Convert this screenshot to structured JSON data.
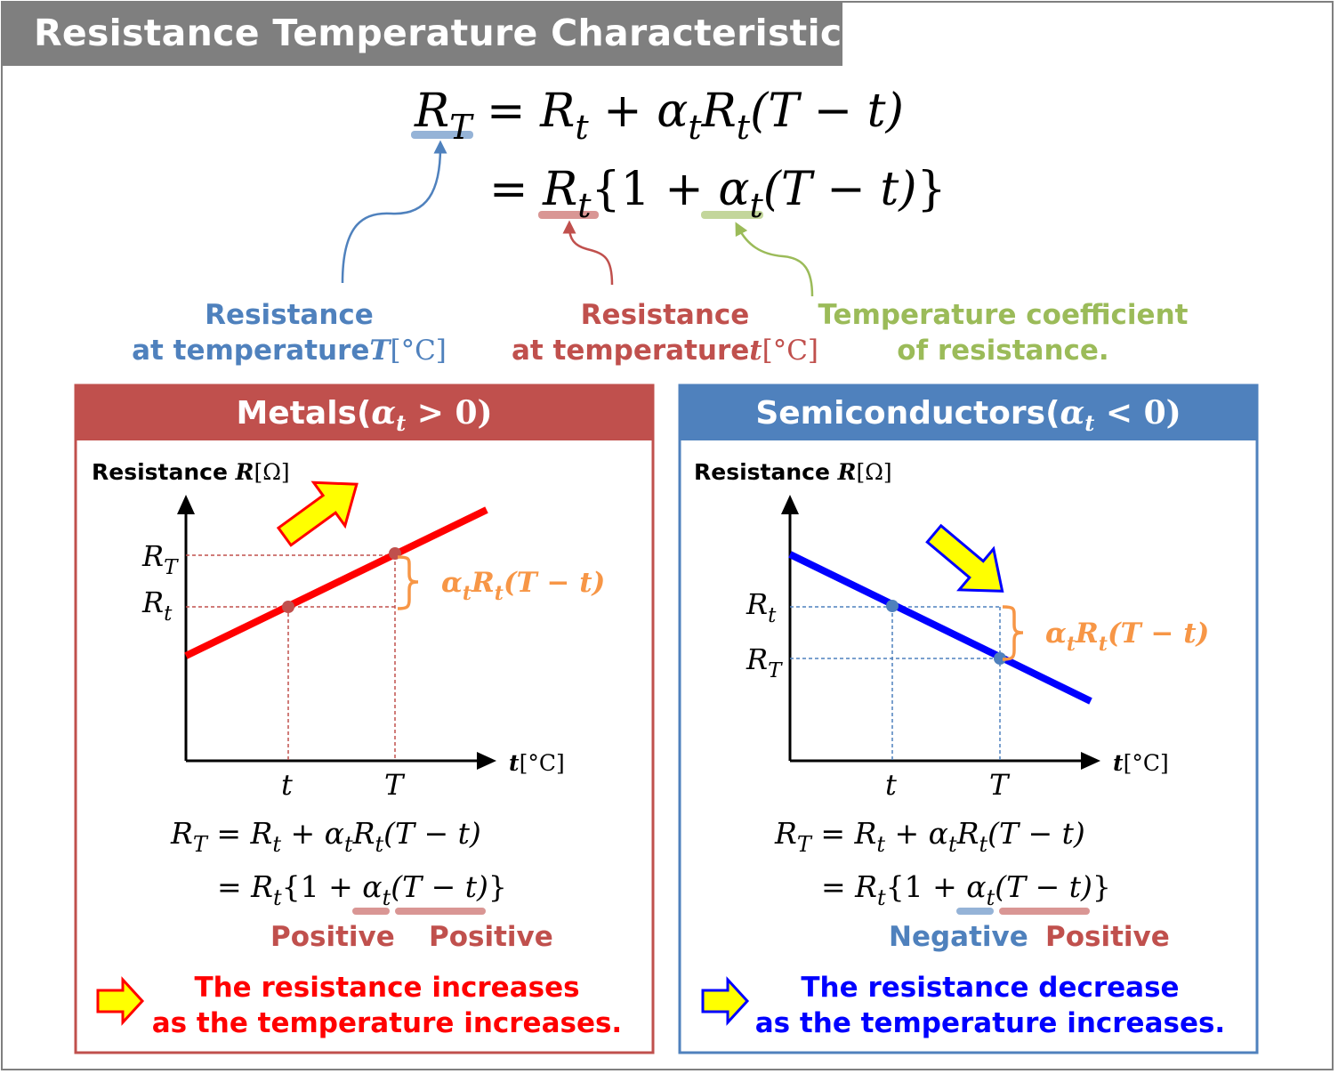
{
  "title": "Resistance Temperature Characteristics",
  "colors": {
    "title_bg": "#7f7f7f",
    "blue_label": "#4f81bd",
    "red_label": "#c0504d",
    "green_label": "#9bbb59",
    "metal_panel": "#c0504d",
    "semi_panel": "#4f81bd",
    "metal_line": "#ff0000",
    "semi_line": "#0000ff",
    "orange": "#f79646",
    "arrow_fill": "#ffff00"
  },
  "main_formula": {
    "line1": {
      "lhs": "R",
      "lhs_sub": "T",
      "rhs": "= R",
      "s1": "t",
      "plus": "+ α",
      "s2": "t",
      "r2": "R",
      "s3": "t",
      "tail": "(T − t)"
    },
    "line2": {
      "eq": "= R",
      "s1": "t",
      "mid": "{1 + α",
      "s2": "t",
      "tail": "(T − t)}"
    }
  },
  "labels": {
    "resistance_T": {
      "line1": "Resistance",
      "line2": "at temperature",
      "var": "T",
      "unit": "[°C]"
    },
    "resistance_t": {
      "line1": "Resistance",
      "line2": "at temperature",
      "var": "t",
      "unit": "[°C]"
    },
    "coefficient": {
      "line1": "Temperature coefficient",
      "line2": "of resistance."
    }
  },
  "metals": {
    "heading_text": "Metals(",
    "heading_var": "α",
    "heading_sub": "t",
    "heading_rel": " > 0)",
    "y_label": "Resistance",
    "y_var": "R",
    "y_unit": "[Ω]",
    "x_var": "t",
    "x_unit": "[°C]",
    "tick_t": "t",
    "tick_T": "T",
    "RT": "R",
    "RT_sub": "T",
    "Rt": "R",
    "Rt_sub": "t",
    "bracket": {
      "a": "α",
      "a_sub": "t",
      "r": "R",
      "r_sub": "t",
      "tail": "(T − t)"
    },
    "signs": [
      "Positive",
      "Positive"
    ],
    "conclusion": [
      "The resistance increases",
      "as the temperature increases."
    ]
  },
  "semiconductors": {
    "heading_text": "Semiconductors(",
    "heading_var": "α",
    "heading_sub": "t",
    "heading_rel": " < 0)",
    "y_label": "Resistance",
    "y_var": "R",
    "y_unit": "[Ω]",
    "x_var": "t",
    "x_unit": "[°C]",
    "tick_t": "t",
    "tick_T": "T",
    "RT": "R",
    "RT_sub": "T",
    "Rt": "R",
    "Rt_sub": "t",
    "bracket": {
      "a": "α",
      "a_sub": "t",
      "r": "R",
      "r_sub": "t",
      "tail": "(T − t)"
    },
    "signs": [
      "Negative",
      "Positive"
    ],
    "conclusion": [
      "The resistance decrease",
      "as the temperature increases."
    ]
  },
  "panel_formula": {
    "line1": {
      "lhs": "R",
      "lhs_sub": "T",
      "rhs": "= R",
      "s1": "t",
      "plus": "+ α",
      "s2": "t",
      "r2": "R",
      "s3": "t",
      "tail": "(T − t)"
    },
    "line2": {
      "eq": "= R",
      "s1": "t",
      "mid": "{1 + α",
      "s2": "t",
      "tail": "(T − t)}"
    }
  }
}
